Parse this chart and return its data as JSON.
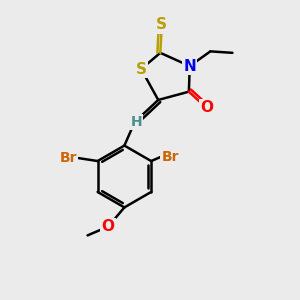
{
  "background_color": "#ebebeb",
  "atom_colors": {
    "S": "#b8a000",
    "N": "#0000ee",
    "O": "#ff0000",
    "Br": "#cc6600",
    "C": "#000000",
    "H": "#4a9090"
  },
  "bond_color": "#000000",
  "font_size": 11
}
